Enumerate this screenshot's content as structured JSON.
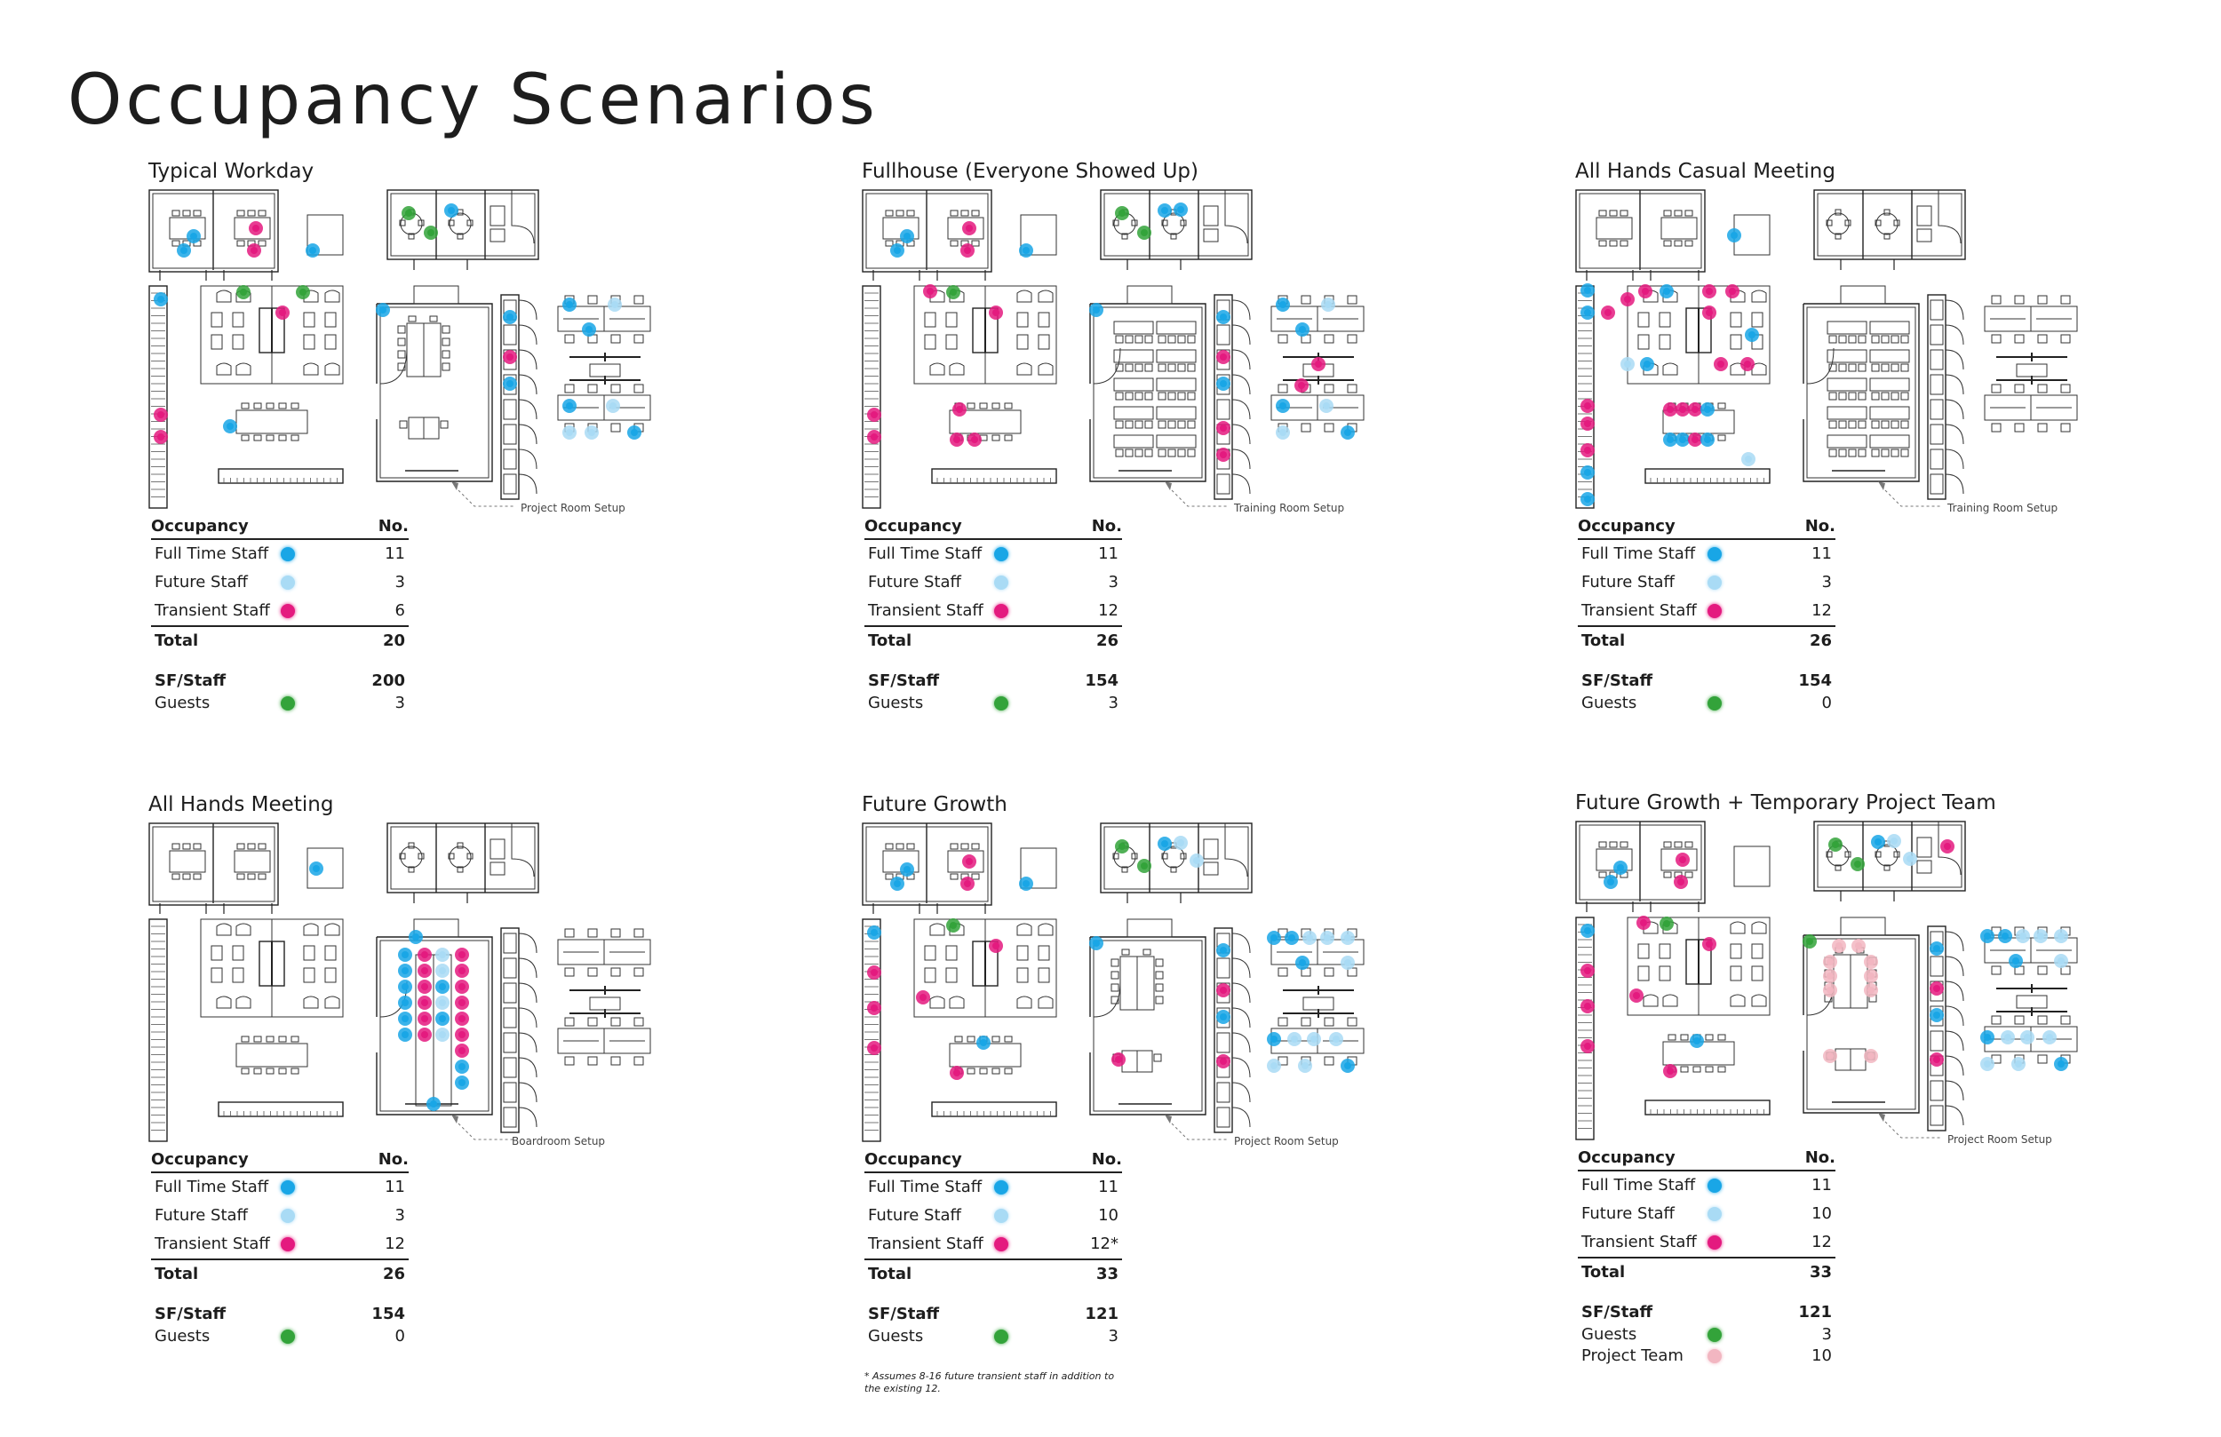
{
  "title": "Occupancy Scenarios",
  "table_header": {
    "category": "Occupancy",
    "number": "No."
  },
  "colors": {
    "full_time": "#19a6e6",
    "future": "#a9dbf5",
    "transient": "#e41a7f",
    "guest": "#33a33a",
    "project_team": "#f2b6c1"
  },
  "scenarios": [
    {
      "title": "Typical Workday",
      "setup_label": "Project Room Setup",
      "rows": [
        {
          "label": "Full Time Staff",
          "value": "11"
        },
        {
          "label": "Future Staff",
          "value": "3"
        },
        {
          "label": "Transient Staff",
          "value": "6"
        }
      ],
      "total_label": "Total",
      "total": "20",
      "sf_label": "SF/Staff",
      "sf": "200",
      "guests_label": "Guests",
      "guests": "3"
    },
    {
      "title": "Fullhouse (Everyone Showed Up)",
      "setup_label": "Training Room Setup",
      "rows": [
        {
          "label": "Full Time Staff",
          "value": "11"
        },
        {
          "label": "Future Staff",
          "value": "3"
        },
        {
          "label": "Transient Staff",
          "value": "12"
        }
      ],
      "total_label": "Total",
      "total": "26",
      "sf_label": "SF/Staff",
      "sf": "154",
      "guests_label": "Guests",
      "guests": "3"
    },
    {
      "title": "All Hands Casual Meeting",
      "setup_label": "Training Room Setup",
      "rows": [
        {
          "label": "Full Time Staff",
          "value": "11"
        },
        {
          "label": "Future Staff",
          "value": "3"
        },
        {
          "label": "Transient Staff",
          "value": "12"
        }
      ],
      "total_label": "Total",
      "total": "26",
      "sf_label": "SF/Staff",
      "sf": "154",
      "guests_label": "Guests",
      "guests": "0"
    },
    {
      "title": "All Hands Meeting",
      "setup_label": "Boardroom Setup",
      "rows": [
        {
          "label": "Full Time Staff",
          "value": "11"
        },
        {
          "label": "Future Staff",
          "value": "3"
        },
        {
          "label": "Transient Staff",
          "value": "12"
        }
      ],
      "total_label": "Total",
      "total": "26",
      "sf_label": "SF/Staff",
      "sf": "154",
      "guests_label": "Guests",
      "guests": "0"
    },
    {
      "title": "Future Growth",
      "setup_label": "Project Room Setup",
      "rows": [
        {
          "label": "Full Time Staff",
          "value": "11"
        },
        {
          "label": "Future Staff",
          "value": "10"
        },
        {
          "label": "Transient Staff",
          "value": "12*"
        }
      ],
      "total_label": "Total",
      "total": "33",
      "sf_label": "SF/Staff",
      "sf": "121",
      "guests_label": "Guests",
      "guests": "3",
      "footnote": "* Assumes 8-16 future transient staff in addition to the existing 12."
    },
    {
      "title": "Future Growth + Temporary Project Team",
      "setup_label": "Project Room Setup",
      "rows": [
        {
          "label": "Full Time Staff",
          "value": "11"
        },
        {
          "label": "Future Staff",
          "value": "10"
        },
        {
          "label": "Transient Staff",
          "value": "12"
        }
      ],
      "total_label": "Total",
      "total": "33",
      "sf_label": "SF/Staff",
      "sf": "121",
      "guests_label": "Guests",
      "guests": "3",
      "project_team_label": "Project Team",
      "project_team": "10"
    }
  ]
}
